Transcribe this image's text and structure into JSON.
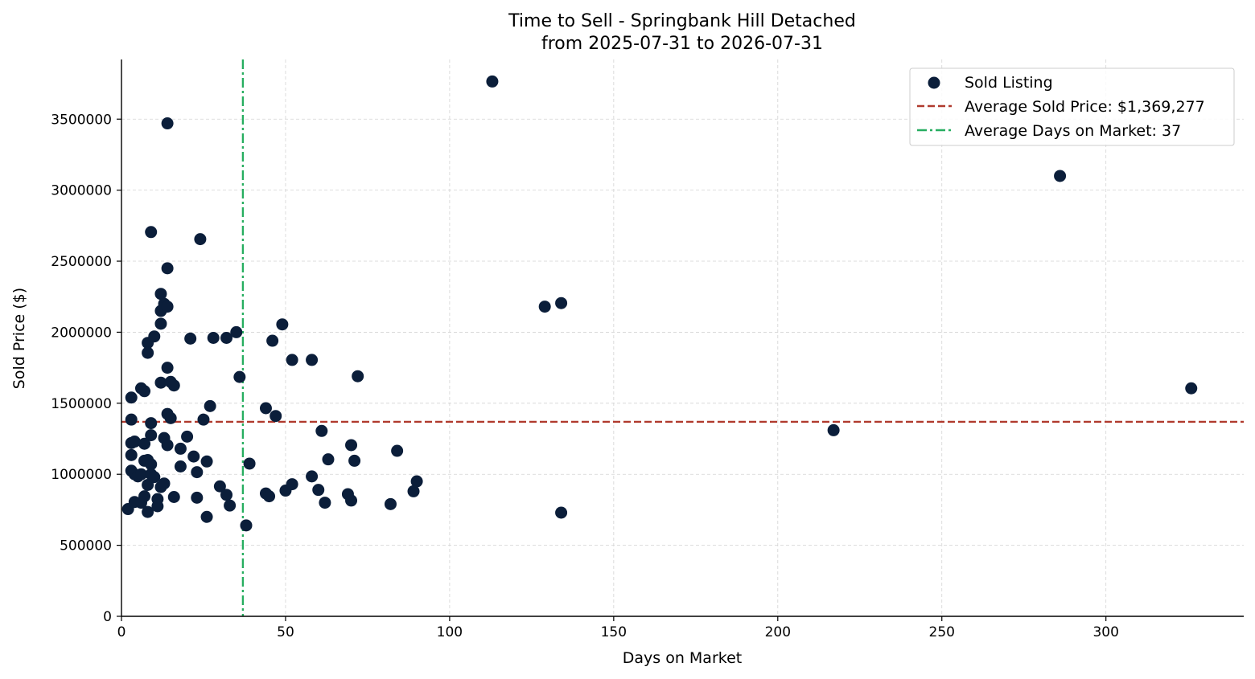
{
  "chart_data": {
    "type": "scatter",
    "title": "Time to Sell - Springbank Hill Detached",
    "subtitle": "from 2025-07-31 to 2026-07-31",
    "xlabel": "Days on Market",
    "ylabel": "Sold Price ($)",
    "xlim": [
      0,
      342
    ],
    "ylim": [
      0,
      3920000
    ],
    "x_ticks": [
      0,
      50,
      100,
      150,
      200,
      250,
      300
    ],
    "y_ticks": [
      0,
      500000,
      1000000,
      1500000,
      2000000,
      2500000,
      3000000,
      3500000
    ],
    "x_tick_labels": [
      "0",
      "50",
      "100",
      "150",
      "200",
      "250",
      "300"
    ],
    "y_tick_labels": [
      "0",
      "500000",
      "1000000",
      "1500000",
      "2000000",
      "2500000",
      "3000000",
      "3500000"
    ],
    "grid": true,
    "legend_position": "top-right",
    "colors": {
      "points": "#0b1e3a",
      "avg_price_line": "#b03a2e",
      "avg_days_line": "#27ae60",
      "grid": "#d3d3d3",
      "axis": "#000000"
    },
    "series": [
      {
        "name": "Sold Listing",
        "points": [
          [
            2,
            755000
          ],
          [
            3,
            1540000
          ],
          [
            3,
            1385000
          ],
          [
            3,
            1220000
          ],
          [
            3,
            1135000
          ],
          [
            3,
            1025000
          ],
          [
            4,
            805000
          ],
          [
            4,
            1000000
          ],
          [
            4,
            1230000
          ],
          [
            5,
            985000
          ],
          [
            6,
            1605000
          ],
          [
            6,
            1000000
          ],
          [
            6,
            800000
          ],
          [
            7,
            1585000
          ],
          [
            7,
            1215000
          ],
          [
            7,
            1095000
          ],
          [
            7,
            845000
          ],
          [
            8,
            1925000
          ],
          [
            8,
            1855000
          ],
          [
            8,
            1100000
          ],
          [
            8,
            925000
          ],
          [
            8,
            735000
          ],
          [
            9,
            2705000
          ],
          [
            9,
            1360000
          ],
          [
            9,
            1275000
          ],
          [
            9,
            1070000
          ],
          [
            9,
            1000000
          ],
          [
            10,
            1970000
          ],
          [
            10,
            980000
          ],
          [
            11,
            825000
          ],
          [
            11,
            775000
          ],
          [
            12,
            2270000
          ],
          [
            12,
            2150000
          ],
          [
            12,
            2060000
          ],
          [
            12,
            1645000
          ],
          [
            12,
            910000
          ],
          [
            13,
            2200000
          ],
          [
            13,
            1255000
          ],
          [
            13,
            935000
          ],
          [
            14,
            3470000
          ],
          [
            14,
            2450000
          ],
          [
            14,
            2180000
          ],
          [
            14,
            1750000
          ],
          [
            14,
            1425000
          ],
          [
            14,
            1205000
          ],
          [
            15,
            1650000
          ],
          [
            15,
            1395000
          ],
          [
            16,
            1625000
          ],
          [
            16,
            840000
          ],
          [
            18,
            1180000
          ],
          [
            18,
            1055000
          ],
          [
            20,
            1265000
          ],
          [
            21,
            1955000
          ],
          [
            22,
            1125000
          ],
          [
            23,
            1015000
          ],
          [
            23,
            835000
          ],
          [
            24,
            2655000
          ],
          [
            25,
            1385000
          ],
          [
            26,
            1090000
          ],
          [
            26,
            700000
          ],
          [
            27,
            1480000
          ],
          [
            28,
            1960000
          ],
          [
            30,
            915000
          ],
          [
            32,
            1960000
          ],
          [
            32,
            855000
          ],
          [
            33,
            780000
          ],
          [
            35,
            2000000
          ],
          [
            36,
            1685000
          ],
          [
            38,
            640000
          ],
          [
            39,
            1075000
          ],
          [
            44,
            1465000
          ],
          [
            44,
            865000
          ],
          [
            45,
            845000
          ],
          [
            46,
            1940000
          ],
          [
            47,
            1410000
          ],
          [
            49,
            2055000
          ],
          [
            50,
            885000
          ],
          [
            52,
            1805000
          ],
          [
            52,
            930000
          ],
          [
            58,
            1805000
          ],
          [
            58,
            985000
          ],
          [
            60,
            890000
          ],
          [
            61,
            1305000
          ],
          [
            62,
            800000
          ],
          [
            63,
            1105000
          ],
          [
            69,
            860000
          ],
          [
            70,
            1205000
          ],
          [
            70,
            815000
          ],
          [
            71,
            1095000
          ],
          [
            72,
            1690000
          ],
          [
            82,
            790000
          ],
          [
            84,
            1165000
          ],
          [
            89,
            880000
          ],
          [
            90,
            950000
          ],
          [
            113,
            3765000
          ],
          [
            129,
            2180000
          ],
          [
            134,
            2205000
          ],
          [
            134,
            730000
          ],
          [
            217,
            1310000
          ],
          [
            286,
            3100000
          ],
          [
            326,
            1605000
          ]
        ]
      }
    ],
    "reference_lines": [
      {
        "name": "Average Sold Price: $1,369,277",
        "orientation": "horizontal",
        "value": 1369277,
        "style": "dashed"
      },
      {
        "name": "Average Days on Market: 37",
        "orientation": "vertical",
        "value": 37,
        "style": "dashdot"
      }
    ]
  }
}
